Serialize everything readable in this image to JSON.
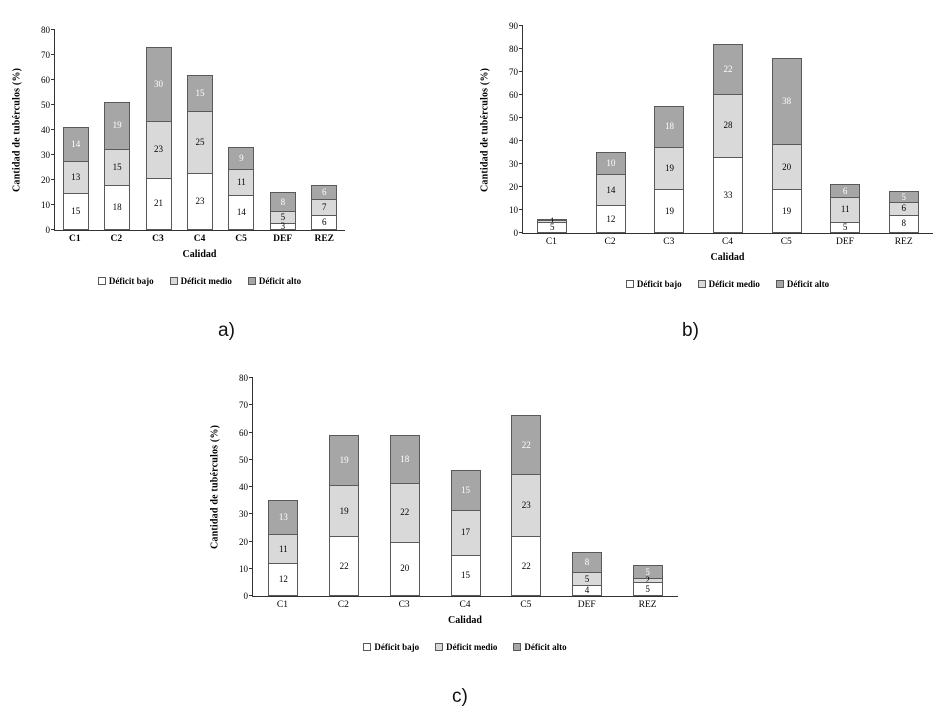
{
  "figure_labels": {
    "a": "a)",
    "b": "b)",
    "c": "c)"
  },
  "colors": {
    "deficit_bajo": "#ffffff",
    "deficit_medio": "#d9d9d9",
    "deficit_alto": "#a6a6a6",
    "segment_border": "#595959",
    "axis": "#333333"
  },
  "chart_data": [
    {
      "id": "a",
      "type": "bar",
      "stacked": true,
      "title": "",
      "xlabel": "Calidad",
      "ylabel": "Cantidad de tubérculos (%)",
      "ylim": [
        0,
        80
      ],
      "ytick": 10,
      "grid": false,
      "legend_position": "bottom",
      "categories": [
        "C1",
        "C2",
        "C3",
        "C4",
        "C5",
        "DEF",
        "REZ"
      ],
      "series": [
        {
          "name": "Déficit bajo",
          "values": [
            15,
            18,
            21,
            23,
            14,
            3,
            6
          ]
        },
        {
          "name": "Déficit medio",
          "values": [
            13,
            15,
            23,
            25,
            11,
            5,
            7
          ]
        },
        {
          "name": "Déficit alto",
          "values": [
            14,
            19,
            30,
            15,
            9,
            8,
            6
          ]
        }
      ]
    },
    {
      "id": "b",
      "type": "bar",
      "stacked": true,
      "title": "",
      "xlabel": "Calidad",
      "ylabel": "Cantidad de tubérculos (%)",
      "ylim": [
        0,
        90
      ],
      "ytick": 10,
      "grid": false,
      "legend_position": "bottom",
      "categories": [
        "C1",
        "C2",
        "C3",
        "C4",
        "C5",
        "DEF",
        "REZ"
      ],
      "series": [
        {
          "name": "Déficit bajo",
          "values": [
            5,
            12,
            19,
            33,
            19,
            5,
            8
          ]
        },
        {
          "name": "Déficit medio",
          "values": [
            1,
            14,
            19,
            28,
            20,
            11,
            6
          ]
        },
        {
          "name": "Déficit alto",
          "values": [
            1,
            10,
            18,
            22,
            38,
            6,
            5
          ]
        }
      ]
    },
    {
      "id": "c",
      "type": "bar",
      "stacked": true,
      "title": "",
      "xlabel": "Calidad",
      "ylabel": "Cantidad de tubérculos (%)",
      "ylim": [
        0,
        80
      ],
      "ytick": 10,
      "grid": false,
      "legend_position": "bottom",
      "categories": [
        "C1",
        "C2",
        "C3",
        "C4",
        "C5",
        "DEF",
        "REZ"
      ],
      "series": [
        {
          "name": "Déficit bajo",
          "values": [
            12,
            22,
            20,
            15,
            22,
            4,
            5
          ]
        },
        {
          "name": "Déficit medio",
          "values": [
            11,
            19,
            22,
            17,
            23,
            5,
            2
          ]
        },
        {
          "name": "Déficit alto",
          "values": [
            13,
            19,
            18,
            15,
            22,
            8,
            5
          ]
        }
      ]
    }
  ]
}
